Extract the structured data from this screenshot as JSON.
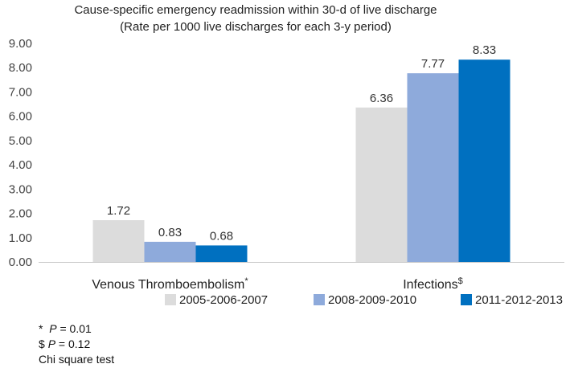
{
  "chart_data": {
    "type": "bar",
    "title": "Cause-specific emergency readmission within 30-d of live discharge",
    "subtitle": "(Rate per 1000 live discharges for each 3-y period)",
    "categories": [
      {
        "label": "Venous Thromboembolism",
        "marker": "*"
      },
      {
        "label": "Infections",
        "marker": "$"
      }
    ],
    "series": [
      {
        "name": "2005-2006-2007",
        "color": "#dcdcdc",
        "values": [
          1.72,
          6.36
        ]
      },
      {
        "name": "2008-2009-2010",
        "color": "#8eaadb",
        "values": [
          0.83,
          7.77
        ]
      },
      {
        "name": "2011-2012-2013",
        "color": "#0070c0",
        "values": [
          0.68,
          8.33
        ]
      }
    ],
    "ylim": [
      0,
      9
    ],
    "yticks": [
      "0.00",
      "1.00",
      "2.00",
      "3.00",
      "4.00",
      "5.00",
      "6.00",
      "7.00",
      "8.00",
      "9.00"
    ],
    "grid": false,
    "legend_position": "bottom"
  },
  "notes": {
    "line1_marker": "*",
    "line1_p": "P",
    "line1_rest": " = 0.01",
    "line2_marker": "$",
    "line2_p": "P",
    "line2_rest": " = 0.12",
    "line3": "Chi square test"
  }
}
